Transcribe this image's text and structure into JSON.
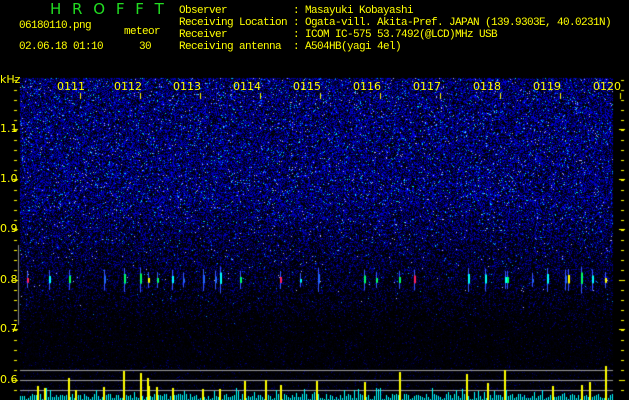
{
  "app_title": "H R O F F T",
  "file": {
    "name": "06180110.png",
    "datetime": "02.06.18 01:10"
  },
  "meteor": {
    "label": "meteor",
    "count": "30"
  },
  "info": [
    {
      "label": "Observer",
      "value": ": Masayuki Kobayashi"
    },
    {
      "label": "Receiving Location",
      "value": ": Ogata-vill. Akita-Pref. JAPAN (139.9303E, 40.0231N)"
    },
    {
      "label": "Receiver",
      "value": ": ICOM IC-575 53.7492(@LCD)MHz USB"
    },
    {
      "label": "Receiving antenna",
      "value": ": A504HB(yagi 4el)"
    }
  ],
  "y_axis": {
    "unit": "kHz",
    "ticks": [
      "1.1",
      "1.0",
      "0.9",
      "0.8",
      "0.7",
      "0.6"
    ]
  },
  "time_labels": [
    "0111",
    "0112",
    "0113",
    "0114",
    "0115",
    "0116",
    "0117",
    "0118",
    "0119",
    "0120"
  ],
  "colors": {
    "text": "#ffff00",
    "title": "#22dd22",
    "noise": "#1a1aff",
    "meteor_bar": "#ffff00",
    "noise_bar": "#00ffff"
  }
}
